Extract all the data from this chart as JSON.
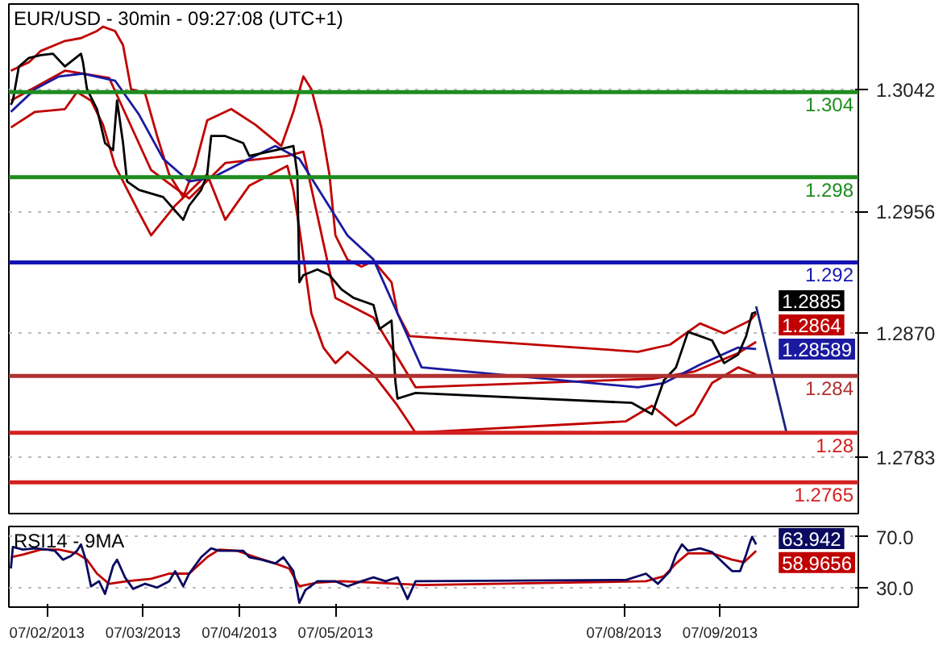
{
  "chart_data": [
    {
      "type": "line",
      "title": "EUR/USD - 30min - 09:27:08 (UTC+1)",
      "xlim": [
        "2013-07-01T14:30",
        "2013-07-10T10:30"
      ],
      "ylim": [
        1.2743,
        1.3102
      ],
      "yticks": [
        1.3042,
        1.2956,
        {
          "value": 1.287,
          "label": "1.2870"
        },
        1.2783
      ],
      "grid": "y",
      "tick_labels": "y",
      "ref_lines": [
        {
          "axis": "y",
          "value": 1.304,
          "label": "1.304",
          "color": "#1e8c1e"
        },
        {
          "axis": "y",
          "value": 1.298,
          "label": "1.298",
          "color": "#1e8c1e"
        },
        {
          "axis": "y",
          "value": 1.292,
          "label": "1.292",
          "color": "#1414b4"
        },
        {
          "axis": "y",
          "value": 1.284,
          "label": "1.284",
          "color": "#b03030"
        },
        {
          "axis": "y",
          "value": 1.28,
          "label": "1.28",
          "color": "#d42020"
        },
        {
          "axis": "y",
          "value": 1.2765,
          "label": "1.2765",
          "color": "#d42020"
        }
      ],
      "series": [
        {
          "color": "#c00000",
          "x": [
            "2013-07-01T15:00",
            "2013-07-01T19:30",
            "2013-07-01T22:30",
            "2013-07-02T04:30",
            "2013-07-02T08:30",
            "2013-07-02T12:30",
            "2013-07-02T14:00",
            "2013-07-02T17:00",
            "2013-07-02T19:00",
            "2013-07-02T21:00",
            "2013-07-03T00:30",
            "2013-07-03T03:30",
            "2013-07-03T06:30",
            "2013-07-03T10:00",
            "2013-07-03T13:00",
            "2013-07-03T16:00",
            "2013-07-03T22:00",
            "2013-07-04T04:00",
            "2013-07-04T10:30",
            "2013-07-04T13:30",
            "2013-07-04T16:00",
            "2013-07-04T18:00",
            "2013-07-04T20:30",
            "2013-07-04T22:30",
            "2013-07-05T00:00",
            "2013-07-05T03:00",
            "2013-07-05T06:30",
            "2013-07-05T09:30",
            "2013-07-05T14:00",
            "2013-07-05T15:30",
            "2013-07-05T18:30",
            "2013-07-08T03:30",
            "2013-07-08T11:30",
            "2013-07-08T19:00",
            "2013-07-09T01:00",
            "2013-07-09T07:30",
            "2013-07-09T09:00"
          ],
          "values": [
            1.3055,
            1.3061,
            1.3069,
            1.3076,
            1.3078,
            1.3083,
            1.3086,
            1.3083,
            1.3073,
            1.3042,
            1.3039,
            1.3009,
            1.2982,
            1.2966,
            1.2988,
            1.302,
            1.3028,
            1.3017,
            1.3002,
            1.3026,
            1.3051,
            1.3042,
            1.3015,
            1.2982,
            1.2939,
            1.2922,
            1.2917,
            1.2921,
            1.2906,
            1.2884,
            1.2868,
            1.2857,
            1.2862,
            1.2877,
            1.287,
            1.2879,
            1.2884
          ]
        },
        {
          "color": "#c00000",
          "x": [
            "2013-07-01T15:00",
            "2013-07-01T21:00",
            "2013-07-02T04:30",
            "2013-07-02T07:30",
            "2013-07-02T11:00",
            "2013-07-02T14:00",
            "2013-07-02T17:00",
            "2013-07-02T23:00",
            "2013-07-03T02:00",
            "2013-07-03T08:00",
            "2013-07-03T16:00",
            "2013-07-03T20:30",
            "2013-07-04T02:30",
            "2013-07-04T12:00",
            "2013-07-04T13:30",
            "2013-07-04T15:00",
            "2013-07-04T18:00",
            "2013-07-04T21:00",
            "2013-07-05T00:00",
            "2013-07-05T03:00",
            "2013-07-05T09:30",
            "2013-07-05T15:30",
            "2013-07-05T20:00",
            "2013-07-08T00:30",
            "2013-07-08T07:00",
            "2013-07-08T13:00",
            "2013-07-08T17:30",
            "2013-07-08T22:00",
            "2013-07-09T04:30",
            "2013-07-09T09:00"
          ],
          "values": [
            1.3015,
            1.3026,
            1.3028,
            1.304,
            1.3034,
            1.3017,
            1.2988,
            1.2955,
            1.2939,
            1.296,
            1.2982,
            1.295,
            1.2974,
            1.2988,
            1.2971,
            1.2944,
            1.2884,
            1.286,
            1.2849,
            1.2857,
            1.2841,
            1.2819,
            1.28,
            1.2808,
            1.2819,
            1.2805,
            1.2813,
            1.2835,
            1.2846,
            1.2841
          ]
        },
        {
          "color": "#c00000",
          "x": [
            "2013-07-01T15:00",
            "2013-07-02T04:30",
            "2013-07-02T15:30",
            "2013-07-03T02:00",
            "2013-07-03T11:30",
            "2013-07-03T20:30",
            "2013-07-04T12:00",
            "2013-07-04T16:00",
            "2013-07-05T00:00",
            "2013-07-05T09:30",
            "2013-07-05T20:00",
            "2013-07-08T07:00",
            "2013-07-08T17:30",
            "2013-07-09T04:30",
            "2013-07-09T09:00"
          ],
          "values": [
            1.3034,
            1.3055,
            1.305,
            1.2985,
            1.2965,
            1.299,
            1.2995,
            1.2998,
            1.2895,
            1.2881,
            1.2832,
            1.2838,
            1.2843,
            1.2856,
            1.2864
          ],
          "value_labels": [
            null,
            null,
            null,
            null,
            null,
            null,
            null,
            null,
            null,
            null,
            null,
            null,
            null,
            null,
            "1.2864"
          ]
        },
        {
          "color": "#1a1aa0",
          "x": [
            "2013-07-01T15:00",
            "2013-07-01T21:00",
            "2013-07-02T03:00",
            "2013-07-02T09:00",
            "2013-07-02T17:00",
            "2013-07-02T23:00",
            "2013-07-03T05:00",
            "2013-07-03T11:30",
            "2013-07-03T17:30",
            "2013-07-04T02:30",
            "2013-07-04T09:00",
            "2013-07-04T15:00",
            "2013-07-04T21:00",
            "2013-07-05T03:00",
            "2013-07-05T09:30",
            "2013-07-05T15:30",
            "2013-07-05T21:30",
            "2013-07-08T03:30",
            "2013-07-08T10:00",
            "2013-07-08T19:00",
            "2013-07-09T04:30",
            "2013-07-09T09:00"
          ],
          "values": [
            1.3026,
            1.3042,
            1.3051,
            1.3053,
            1.3048,
            1.3024,
            1.2993,
            1.2977,
            1.298,
            1.2993,
            1.3002,
            1.2993,
            1.2966,
            1.2939,
            1.2922,
            1.2884,
            1.2846,
            1.2832,
            1.2835,
            1.2848,
            1.286,
            1.28589
          ],
          "value_labels": [
            null,
            null,
            null,
            null,
            null,
            null,
            null,
            null,
            null,
            null,
            null,
            null,
            null,
            null,
            null,
            null,
            null,
            null,
            null,
            null,
            null,
            "1.28589"
          ]
        },
        {
          "color": "#000000",
          "x": [
            "2013-07-01T15:00",
            "2013-07-01T15:30",
            "2013-07-01T17:00",
            "2013-07-01T19:30",
            "2013-07-01T22:30",
            "2013-07-02T01:30",
            "2013-07-02T04:30",
            "2013-07-02T08:30",
            "2013-07-02T09:00",
            "2013-07-02T10:00",
            "2013-07-02T12:30",
            "2013-07-02T14:30",
            "2013-07-02T16:30",
            "2013-07-02T17:30",
            "2013-07-02T19:00",
            "2013-07-02T20:00",
            "2013-07-02T23:00",
            "2013-07-03T05:00",
            "2013-07-03T10:00",
            "2013-07-03T11:30",
            "2013-07-03T14:30",
            "2013-07-03T16:00",
            "2013-07-03T17:00",
            "2013-07-03T20:30",
            "2013-07-04T01:00",
            "2013-07-04T02:30",
            "2013-07-04T09:00",
            "2013-07-04T13:30",
            "2013-07-04T14:30",
            "2013-07-04T15:00",
            "2013-07-04T16:00",
            "2013-07-04T19:30",
            "2013-07-04T22:30",
            "2013-07-05T01:30",
            "2013-07-05T04:30",
            "2013-07-05T09:30",
            "2013-07-05T11:00",
            "2013-07-05T14:00",
            "2013-07-05T15:00",
            "2013-07-05T15:30",
            "2013-07-05T20:00",
            "2013-07-08T02:00",
            "2013-07-08T07:00",
            "2013-07-08T10:00",
            "2013-07-08T13:00",
            "2013-07-08T16:00",
            "2013-07-08T19:00",
            "2013-07-08T22:00",
            "2013-07-09T01:00",
            "2013-07-09T04:30",
            "2013-07-09T06:30",
            "2013-07-09T08:00",
            "2013-07-09T09:00"
          ],
          "values": [
            1.3031,
            1.3034,
            1.3058,
            1.3064,
            1.3066,
            1.3067,
            1.3058,
            1.3067,
            1.3061,
            1.3042,
            1.3028,
            1.3004,
            1.2999,
            1.3034,
            1.3004,
            1.2977,
            1.2971,
            1.2966,
            1.295,
            1.296,
            1.2971,
            1.2982,
            1.3009,
            1.3009,
            1.3004,
            1.2995,
            1.2999,
            1.3002,
            1.2982,
            1.2906,
            1.2911,
            1.2915,
            1.2911,
            1.2901,
            1.2895,
            1.289,
            1.2873,
            1.2879,
            1.2835,
            1.2824,
            1.2828,
            1.2821,
            1.2813,
            1.2837,
            1.2846,
            1.2871,
            1.2868,
            1.2865,
            1.2849,
            1.2855,
            1.2868,
            1.2884,
            1.2885
          ],
          "value_labels": [
            null,
            null,
            null,
            null,
            null,
            null,
            null,
            null,
            null,
            null,
            null,
            null,
            null,
            null,
            null,
            null,
            null,
            null,
            null,
            null,
            null,
            null,
            null,
            null,
            null,
            null,
            null,
            null,
            null,
            null,
            null,
            null,
            null,
            null,
            null,
            null,
            null,
            null,
            null,
            null,
            null,
            null,
            null,
            null,
            null,
            null,
            null,
            null,
            null,
            null,
            null,
            null,
            "1.2885"
          ]
        },
        {
          "color": "#1a237e",
          "x": [
            "2013-07-09T09:00",
            "2013-07-09T16:30"
          ],
          "values": [
            1.2889,
            1.2801
          ]
        }
      ]
    },
    {
      "type": "line",
      "title": "RSI14 - 9MA",
      "xlim": [
        "2013-07-01T14:30",
        "2013-07-10T10:30"
      ],
      "ylim": [
        14.6,
        78.2
      ],
      "yticks": [
        {
          "value": 70,
          "label": "70.0"
        },
        {
          "value": 30,
          "label": "30.0"
        }
      ],
      "xticks": [
        {
          "value": "2013-07-02",
          "label": "07/02/2013"
        },
        {
          "value": "2013-07-03",
          "label": "07/03/2013"
        },
        {
          "value": "2013-07-04",
          "label": "07/04/2013"
        },
        {
          "value": "2013-07-05",
          "label": "07/05/2013"
        },
        {
          "value": "2013-07-08",
          "label": "07/08/2013"
        },
        {
          "value": "2013-07-09",
          "label": "07/09/2013"
        }
      ],
      "grid": "y",
      "series": [
        {
          "color": "#c00000",
          "x": [
            "2013-07-01T15:00",
            "2013-07-01T18:00",
            "2013-07-01T22:30",
            "2013-07-02T03:00",
            "2013-07-02T07:30",
            "2013-07-02T10:00",
            "2013-07-02T12:30",
            "2013-07-02T15:30",
            "2013-07-02T20:00",
            "2013-07-03T02:00",
            "2013-07-03T06:30",
            "2013-07-03T11:30",
            "2013-07-03T16:00",
            "2013-07-03T19:00",
            "2013-07-03T23:30",
            "2013-07-04T04:00",
            "2013-07-04T09:00",
            "2013-07-04T12:30",
            "2013-07-04T15:00",
            "2013-07-04T19:30",
            "2013-07-05T01:30",
            "2013-07-05T09:30",
            "2013-07-05T15:30",
            "2013-07-05T21:30",
            "2013-07-08T05:30",
            "2013-07-08T10:00",
            "2013-07-08T13:00",
            "2013-07-08T16:00",
            "2013-07-08T22:00",
            "2013-07-09T03:00",
            "2013-07-09T06:00",
            "2013-07-09T09:00"
          ],
          "values": [
            54,
            56,
            60,
            60,
            57,
            52,
            41,
            33,
            35,
            37,
            41,
            41,
            54,
            60,
            59,
            54,
            49,
            45,
            31,
            34,
            35,
            34,
            33,
            32,
            35,
            39,
            49,
            57,
            57,
            52,
            50,
            58.9656
          ],
          "value_labels": [
            null,
            null,
            null,
            null,
            null,
            null,
            null,
            null,
            null,
            null,
            null,
            null,
            null,
            null,
            null,
            null,
            null,
            null,
            null,
            null,
            null,
            null,
            null,
            null,
            null,
            null,
            null,
            null,
            null,
            null,
            null,
            "58.9656"
          ]
        },
        {
          "color": "#0a0a60",
          "x": [
            "2013-07-01T15:00",
            "2013-07-01T15:30",
            "2013-07-01T18:00",
            "2013-07-01T21:00",
            "2013-07-02T00:00",
            "2013-07-02T02:00",
            "2013-07-02T04:00",
            "2013-07-02T06:00",
            "2013-07-02T07:30",
            "2013-07-02T08:30",
            "2013-07-02T09:30",
            "2013-07-02T11:00",
            "2013-07-02T13:00",
            "2013-07-02T14:30",
            "2013-07-02T16:30",
            "2013-07-02T17:30",
            "2013-07-02T19:30",
            "2013-07-02T21:30",
            "2013-07-03T00:30",
            "2013-07-03T03:30",
            "2013-07-03T06:30",
            "2013-07-03T08:00",
            "2013-07-03T10:00",
            "2013-07-03T11:30",
            "2013-07-03T14:30",
            "2013-07-03T17:00",
            "2013-07-03T19:00",
            "2013-07-03T22:00",
            "2013-07-04T01:00",
            "2013-07-04T02:30",
            "2013-07-04T05:30",
            "2013-07-04T09:00",
            "2013-07-04T11:00",
            "2013-07-04T13:30",
            "2013-07-04T15:00",
            "2013-07-04T16:30",
            "2013-07-04T19:30",
            "2013-07-05T00:00",
            "2013-07-05T03:00",
            "2013-07-05T06:30",
            "2013-07-05T09:30",
            "2013-07-05T12:30",
            "2013-07-05T15:30",
            "2013-07-05T18:00",
            "2013-07-05T20:00",
            "2013-07-08T00:30",
            "2013-07-08T05:30",
            "2013-07-08T08:30",
            "2013-07-08T11:30",
            "2013-07-08T13:00",
            "2013-07-08T14:30",
            "2013-07-08T16:00",
            "2013-07-08T19:00",
            "2013-07-08T22:00",
            "2013-07-09T01:00",
            "2013-07-09T03:00",
            "2013-07-09T05:00",
            "2013-07-09T06:30",
            "2013-07-09T07:30",
            "2013-07-09T08:00",
            "2013-07-09T09:00"
          ],
          "values": [
            45,
            62,
            60,
            61,
            60,
            59,
            52,
            55,
            59,
            64,
            54,
            31,
            35,
            25,
            47,
            52,
            38,
            29,
            33,
            30,
            35,
            43,
            31,
            41,
            54,
            61,
            59,
            59,
            59,
            54,
            52,
            49,
            54,
            43,
            18,
            28,
            35,
            35,
            31,
            35,
            38,
            35,
            38,
            21,
            35,
            36,
            41,
            33,
            43,
            56,
            64,
            59,
            61,
            58,
            49,
            43,
            43,
            56,
            66,
            70,
            63.942
          ],
          "value_labels": [
            null,
            null,
            null,
            null,
            null,
            null,
            null,
            null,
            null,
            null,
            null,
            null,
            null,
            null,
            null,
            null,
            null,
            null,
            null,
            null,
            null,
            null,
            null,
            null,
            null,
            null,
            null,
            null,
            null,
            null,
            null,
            null,
            null,
            null,
            null,
            null,
            null,
            null,
            null,
            null,
            null,
            null,
            null,
            null,
            null,
            null,
            null,
            null,
            null,
            null,
            null,
            null,
            null,
            null,
            null,
            null,
            null,
            null,
            null,
            null,
            "63.942"
          ]
        }
      ]
    }
  ]
}
